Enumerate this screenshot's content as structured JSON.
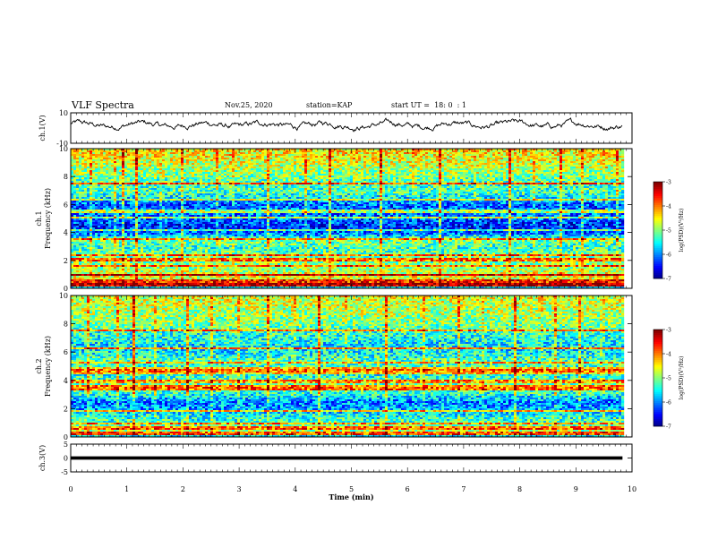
{
  "header": {
    "title": "VLF Spectra",
    "date": "Nov.25, 2020",
    "station": "station=KAP",
    "start_ut": "start UT =  18: 0  : 1"
  },
  "chart_data": [
    {
      "type": "line",
      "panel": "ch1-waveform",
      "ylabel": "ch.1(V)",
      "ylim": [
        -10,
        10
      ],
      "yticks": [
        "10",
        "-10"
      ],
      "xlim": [
        0,
        10
      ],
      "data_xmax": 9.83,
      "series": [
        {
          "mean": 2,
          "amplitude": 6,
          "color": "#000000"
        }
      ]
    },
    {
      "type": "heatmap",
      "panel": "ch1-spectrogram",
      "ylabel_line1": "ch.1",
      "ylabel_line2": "Frequency  (kHz)",
      "ylim": [
        0,
        10
      ],
      "yticks": [
        "0",
        "2",
        "4",
        "6",
        "8",
        "10"
      ],
      "xlim": [
        0,
        10
      ],
      "data_xmax": 9.83,
      "profile": [
        [
          0.0,
          -6.5
        ],
        [
          0.2,
          -4.2
        ],
        [
          0.5,
          -4.6
        ],
        [
          1.0,
          -4.6
        ],
        [
          1.5,
          -4.9
        ],
        [
          2.0,
          -5.0
        ],
        [
          2.5,
          -5.1
        ],
        [
          3.0,
          -5.3
        ],
        [
          3.5,
          -5.0
        ],
        [
          4.0,
          -6.1
        ],
        [
          4.5,
          -6.4
        ],
        [
          5.0,
          -6.1
        ],
        [
          5.5,
          -6.0
        ],
        [
          6.0,
          -6.2
        ],
        [
          6.5,
          -5.6
        ],
        [
          7.0,
          -5.2
        ],
        [
          7.5,
          -5.3
        ],
        [
          8.0,
          -5.0
        ],
        [
          8.5,
          -4.9
        ],
        [
          9.0,
          -4.7
        ],
        [
          9.5,
          -4.5
        ],
        [
          10.0,
          -4.4
        ]
      ],
      "lines_khz": [
        0.3,
        0.6,
        1.0,
        1.7,
        2.1,
        2.4,
        3.6,
        4.2,
        5.1,
        5.6,
        6.4,
        7.6
      ],
      "bursts_min": [
        0.35,
        0.75,
        0.9,
        1.15,
        1.6,
        1.95,
        2.6,
        2.85,
        3.5,
        4.15,
        4.6,
        5.05,
        5.5,
        6.1,
        6.55,
        7.2,
        7.8,
        8.25,
        8.7,
        9.1,
        9.5,
        9.7
      ]
    },
    {
      "type": "heatmap",
      "panel": "ch2-spectrogram",
      "ylabel_line1": "ch.2",
      "ylabel_line2": "Frequency  (kHz)",
      "ylim": [
        0,
        10
      ],
      "yticks": [
        "0",
        "2",
        "4",
        "6",
        "8",
        "10"
      ],
      "xlim": [
        0,
        10
      ],
      "data_xmax": 9.83,
      "profile": [
        [
          0.0,
          -6.6
        ],
        [
          0.2,
          -4.8
        ],
        [
          0.6,
          -4.9
        ],
        [
          1.0,
          -5.2
        ],
        [
          1.5,
          -5.4
        ],
        [
          2.0,
          -5.8
        ],
        [
          2.5,
          -6.0
        ],
        [
          3.0,
          -5.5
        ],
        [
          3.5,
          -5.1
        ],
        [
          4.0,
          -5.2
        ],
        [
          4.5,
          -5.4
        ],
        [
          5.0,
          -5.3
        ],
        [
          5.5,
          -5.2
        ],
        [
          6.0,
          -5.5
        ],
        [
          6.5,
          -5.6
        ],
        [
          7.0,
          -5.4
        ],
        [
          7.5,
          -5.3
        ],
        [
          8.0,
          -5.0
        ],
        [
          8.5,
          -4.9
        ],
        [
          9.0,
          -4.8
        ],
        [
          9.5,
          -4.7
        ],
        [
          10.0,
          -4.6
        ]
      ],
      "lines_khz": [
        0.3,
        0.7,
        1.0,
        1.9,
        3.4,
        3.6,
        4.0,
        4.6,
        4.9,
        5.3,
        6.3,
        7.6
      ],
      "bursts_min": [
        0.3,
        0.8,
        1.1,
        1.5,
        2.05,
        2.5,
        2.95,
        3.5,
        3.95,
        4.4,
        4.9,
        5.6,
        6.25,
        6.9,
        7.3,
        7.9,
        8.35,
        8.6,
        9.05,
        9.45
      ]
    },
    {
      "type": "line",
      "panel": "ch3-waveform",
      "ylabel": "ch.3(V)",
      "ylim": [
        -5,
        5
      ],
      "yticks": [
        "5",
        "0",
        "-5"
      ],
      "xlim": [
        0,
        10
      ],
      "data_xmax": 9.83,
      "series": [
        {
          "mean": 0,
          "amplitude": 0.6,
          "color": "#000000"
        }
      ]
    }
  ],
  "x_axis": {
    "label": "Time  (min)",
    "ticks": [
      "0",
      "1",
      "2",
      "3",
      "4",
      "5",
      "6",
      "7",
      "8",
      "9",
      "10"
    ]
  },
  "colorbars": [
    {
      "label": "log(PSD)(V²/Hz)",
      "min": -7,
      "max": -3,
      "ticks": [
        "-3",
        "-4",
        "-5",
        "-6",
        "-7"
      ]
    },
    {
      "label": "log(PSD)(V²/Hz)",
      "min": -7,
      "max": -3,
      "ticks": [
        "-3",
        "-4",
        "-5",
        "-6",
        "-7"
      ]
    }
  ]
}
